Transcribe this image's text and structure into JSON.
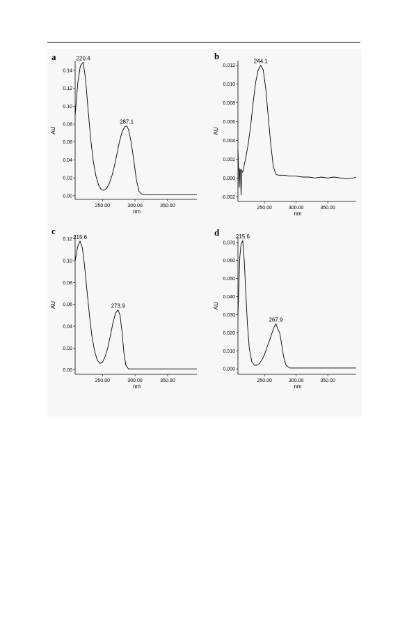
{
  "chart_data": [
    {
      "type": "line",
      "panel_label": "a",
      "xlabel": "nm",
      "ylabel": "AU",
      "xlim": [
        208,
        395
      ],
      "ylim": [
        -0.004,
        0.15
      ],
      "x_ticks": [
        250,
        300,
        350
      ],
      "x_tick_labels": [
        "250.00",
        "300.00",
        "350.00"
      ],
      "y_ticks": [
        0.0,
        0.02,
        0.04,
        0.06,
        0.08,
        0.1,
        0.12,
        0.14
      ],
      "y_tick_labels": [
        "0.00",
        "0.02",
        "0.04",
        "0.06",
        "0.08",
        "0.10",
        "0.12",
        "0.14"
      ],
      "grid": false,
      "series": [
        {
          "x": [
            208,
            212,
            216,
            220.4,
            224,
            228,
            232,
            236,
            240,
            244,
            248,
            252,
            256,
            260,
            264,
            268,
            272,
            276,
            280,
            284,
            287.1,
            290,
            294,
            298,
            302,
            306,
            310,
            320,
            340,
            360,
            380,
            395
          ],
          "y": [
            0.09,
            0.125,
            0.145,
            0.149,
            0.13,
            0.095,
            0.062,
            0.038,
            0.022,
            0.012,
            0.007,
            0.006,
            0.008,
            0.013,
            0.021,
            0.032,
            0.046,
            0.06,
            0.071,
            0.077,
            0.078,
            0.074,
            0.06,
            0.04,
            0.018,
            0.005,
            0.002,
            0.001,
            0.001,
            0.001,
            0.001,
            0.001
          ]
        }
      ],
      "annotations": [
        {
          "text": "220.4",
          "x": 220.4,
          "y": 0.149
        },
        {
          "text": "287.1",
          "x": 287.1,
          "y": 0.078
        }
      ]
    },
    {
      "type": "line",
      "panel_label": "b",
      "xlabel": "nm",
      "ylabel": "AU",
      "xlim": [
        208,
        395
      ],
      "ylim": [
        -0.0025,
        0.0125
      ],
      "x_ticks": [
        250,
        300,
        350
      ],
      "x_tick_labels": [
        "250.00",
        "300.00",
        "350.00"
      ],
      "y_ticks": [
        -0.002,
        0.0,
        0.002,
        0.004,
        0.006,
        0.008,
        0.01,
        0.012
      ],
      "y_tick_labels": [
        "-0.002",
        "0.000",
        "0.002",
        "0.004",
        "0.006",
        "0.008",
        "0.010",
        "0.012"
      ],
      "grid": false,
      "series": [
        {
          "x": [
            208,
            209,
            210,
            211,
            212,
            213,
            214,
            215,
            216,
            218,
            220,
            224,
            228,
            232,
            236,
            240,
            244.1,
            248,
            252,
            256,
            260,
            264,
            268,
            272,
            280,
            290,
            300,
            310,
            320,
            330,
            340,
            350,
            360,
            370,
            380,
            390,
            395
          ],
          "y": [
            0.003,
            0.001,
            -0.001,
            0.001,
            0.0008,
            -0.0018,
            0.0009,
            0.0006,
            0.0007,
            0.0014,
            0.002,
            0.0035,
            0.0055,
            0.008,
            0.0102,
            0.0115,
            0.012,
            0.0115,
            0.0095,
            0.0065,
            0.0035,
            0.0012,
            0.0004,
            0.0003,
            0.0003,
            0.0002,
            0.0002,
            0.0001,
            0.0001,
            0.0,
            0.0001,
            0.0,
            0.0001,
            0.0,
            -0.0001,
            0.0,
            0.0001
          ]
        }
      ],
      "annotations": [
        {
          "text": "244.1",
          "x": 244.1,
          "y": 0.012
        }
      ]
    },
    {
      "type": "line",
      "panel_label": "c",
      "xlabel": "nm",
      "ylabel": "AU",
      "xlim": [
        208,
        395
      ],
      "ylim": [
        -0.004,
        0.123
      ],
      "x_ticks": [
        250,
        300,
        350
      ],
      "x_tick_labels": [
        "250.00",
        "300.00",
        "350.00"
      ],
      "y_ticks": [
        0.0,
        0.02,
        0.04,
        0.06,
        0.08,
        0.1,
        0.12
      ],
      "y_tick_labels": [
        "0.00",
        "0.02",
        "0.04",
        "0.06",
        "0.08",
        "0.10",
        "0.12"
      ],
      "grid": false,
      "series": [
        {
          "x": [
            208,
            212,
            215.6,
            219,
            222,
            226,
            230,
            234,
            238,
            242,
            246,
            250,
            254,
            258,
            262,
            266,
            270,
            273.9,
            277,
            280,
            283,
            286,
            290,
            300,
            320,
            340,
            360,
            380,
            395
          ],
          "y": [
            0.1,
            0.113,
            0.118,
            0.112,
            0.098,
            0.074,
            0.05,
            0.03,
            0.017,
            0.009,
            0.006,
            0.007,
            0.012,
            0.02,
            0.031,
            0.043,
            0.052,
            0.055,
            0.05,
            0.035,
            0.015,
            0.004,
            0.001,
            0.001,
            0.001,
            0.001,
            0.001,
            0.001,
            0.001
          ]
        }
      ],
      "annotations": [
        {
          "text": "215.6",
          "x": 215.6,
          "y": 0.118
        },
        {
          "text": "273.9",
          "x": 273.9,
          "y": 0.055
        }
      ]
    },
    {
      "type": "line",
      "panel_label": "d",
      "xlabel": "nm",
      "ylabel": "AU",
      "xlim": [
        208,
        395
      ],
      "ylim": [
        -0.003,
        0.073
      ],
      "x_ticks": [
        250,
        300,
        350
      ],
      "x_tick_labels": [
        "250.00",
        "300.00",
        "350.00"
      ],
      "y_ticks": [
        0.0,
        0.01,
        0.02,
        0.03,
        0.04,
        0.05,
        0.06,
        0.07
      ],
      "y_tick_labels": [
        "0.000",
        "0.010",
        "0.020",
        "0.030",
        "0.040",
        "0.050",
        "0.060",
        "0.070"
      ],
      "grid": false,
      "series": [
        {
          "x": [
            208,
            211,
            213,
            215.6,
            218,
            220,
            223,
            226,
            230,
            234,
            238,
            242,
            246,
            250,
            254,
            258,
            262,
            265,
            267.9,
            271,
            274,
            277,
            280,
            284,
            290,
            300,
            320,
            340,
            360,
            380,
            395
          ],
          "y": [
            0.03,
            0.062,
            0.069,
            0.071,
            0.06,
            0.045,
            0.025,
            0.011,
            0.004,
            0.002,
            0.002,
            0.003,
            0.005,
            0.008,
            0.012,
            0.016,
            0.02,
            0.023,
            0.025,
            0.022,
            0.02,
            0.014,
            0.007,
            0.002,
            0.0005,
            0.0005,
            0.0005,
            0.0005,
            0.0005,
            0.0005,
            0.0005
          ]
        }
      ],
      "annotations": [
        {
          "text": "215.6",
          "x": 215.6,
          "y": 0.071
        },
        {
          "text": "267.9",
          "x": 267.9,
          "y": 0.025
        }
      ]
    }
  ]
}
